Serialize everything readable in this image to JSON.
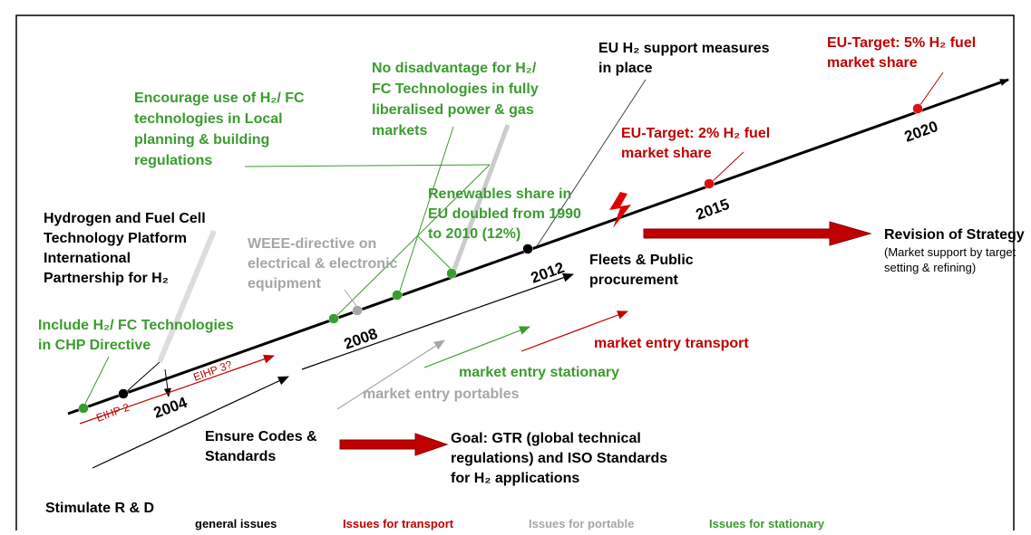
{
  "labels": [
    {
      "lines": [
        "EU H₂ support measures",
        "in place"
      ],
      "color": "#000000"
    },
    {
      "lines": [
        "EU-Target: 5% H₂ fuel",
        "market share"
      ],
      "color": "#c00000"
    },
    {
      "lines": [
        "No disadvantage for H₂/",
        "FC Technologies in fully",
        "liberalised power & gas",
        "markets"
      ],
      "color": "#3a9c2e"
    },
    {
      "lines": [
        "Encourage use of H₂/ FC",
        "technologies in Local",
        "planning & building",
        "regulations"
      ],
      "color": "#3a9c2e"
    },
    {
      "lines": [
        "EU-Target: 2% H₂ fuel",
        "market share"
      ],
      "color": "#c00000"
    },
    {
      "lines": [
        "Renewables share in",
        "EU doubled from 1990",
        "to 2010 (12%)"
      ],
      "color": "#3a9c2e"
    },
    {
      "lines": [
        "Hydrogen and Fuel Cell",
        "Technology Platform",
        "International",
        "Partnership for H₂"
      ],
      "color": "#000000"
    },
    {
      "lines": [
        "WEEE-directive on",
        "electrical & electronic",
        "equipment"
      ],
      "color": "#a6a6a6"
    },
    {
      "lines": [
        "Fleets & Public",
        "procurement"
      ],
      "color": "#000000"
    },
    {
      "lines": [
        "Revision of Strategy"
      ],
      "color": "#000000"
    },
    {
      "lines": [
        "(Market support by target",
        "setting & refining)"
      ],
      "color": "#000000"
    },
    {
      "lines": [
        "Include H₂/ FC Technologies",
        "in CHP Directive"
      ],
      "color": "#3a9c2e"
    },
    {
      "lines": [
        "market entry transport"
      ],
      "color": "#c00000"
    },
    {
      "lines": [
        "market entry stationary"
      ],
      "color": "#3a9c2e"
    },
    {
      "lines": [
        "market entry portables"
      ],
      "color": "#a6a6a6"
    },
    {
      "lines": [
        "Ensure Codes &",
        "Standards"
      ],
      "color": "#000000"
    },
    {
      "lines": [
        "Goal: GTR (global technical",
        "regulations) and ISO Standards",
        "for H₂ applications"
      ],
      "color": "#000000"
    },
    {
      "lines": [
        "Stimulate R & D"
      ],
      "color": "#000000"
    }
  ],
  "years": [
    "2004",
    "2008",
    "2012",
    "2015",
    "2020"
  ],
  "eihp": [
    "EIHP 2",
    "EIHP 3?"
  ],
  "legend": [
    {
      "text": "general issues",
      "color": "#000000"
    },
    {
      "text": "Issues for transport",
      "color": "#c00000"
    },
    {
      "text": "Issues for portable",
      "color": "#a6a6a6"
    },
    {
      "text": "Issues for stationary",
      "color": "#3a9c2e"
    }
  ]
}
